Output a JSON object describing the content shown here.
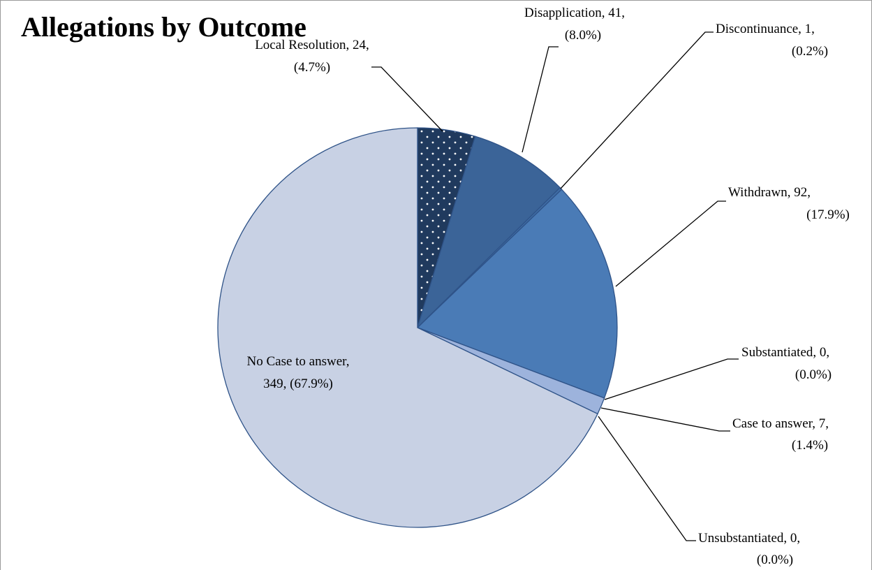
{
  "chart_data": {
    "type": "pie",
    "title": "Allegations by Outcome",
    "values": [
      24,
      41,
      1,
      92,
      0,
      7,
      0,
      349
    ],
    "value_labels": [
      [
        "Local Resolution, 24,",
        "(4.7%)"
      ],
      [
        "Disapplication, 41,",
        "(8.0%)"
      ],
      [
        "Discontinuance, 1,",
        "(0.2%)"
      ],
      [
        "Withdrawn, 92,",
        "(17.9%)"
      ],
      [
        "Substantiated, 0,",
        "(0.0%)"
      ],
      [
        "Case to answer, 7,",
        "(1.4%)"
      ],
      [
        "Unsubstantiated, 0,",
        "(0.0%)"
      ],
      [
        "No Case to answer,",
        "349, (67.9%)"
      ]
    ],
    "colors": [
      "#203a5e",
      "#3b6498",
      "#3f6ca4",
      "#4a7bb6",
      "#6d90c6",
      "#9db3dc",
      "#b4c4e2",
      "#c8d1e4"
    ],
    "patterns": [
      "dots",
      null,
      null,
      null,
      null,
      null,
      null,
      null
    ]
  }
}
